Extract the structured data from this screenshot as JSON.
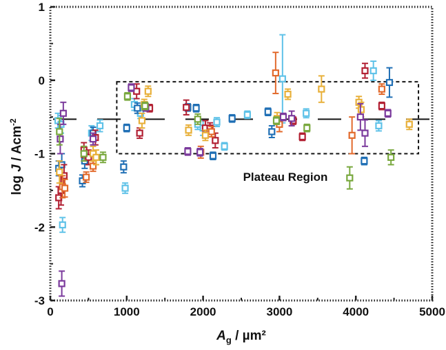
{
  "chart_data": {
    "type": "scatter",
    "title": "",
    "xlabel_main": "A",
    "xlabel_sub": "g",
    "xlabel_rest": " / µm²",
    "ylabel_prefix": "log ",
    "ylabel_italic": "J",
    "ylabel_rest": " / Acm",
    "ylabel_sup": "-2",
    "xlim": [
      0,
      5000
    ],
    "ylim": [
      -3,
      1
    ],
    "x_ticks": [
      0,
      1000,
      2000,
      3000,
      4000,
      5000
    ],
    "x_tick_labels": [
      "0",
      "1000",
      "2000",
      "3000",
      "4000",
      "5000"
    ],
    "y_ticks": [
      -3,
      -2,
      -1,
      0,
      1
    ],
    "y_tick_labels": [
      "-3",
      "-2",
      "-1",
      "0",
      "1"
    ],
    "grid": false,
    "legend": "none",
    "plateau_level": -0.53,
    "plateau_box": {
      "x": [
        870,
        4820
      ],
      "y": [
        -1.0,
        -0.02
      ]
    },
    "annotation": "Plateau Region",
    "colors": {
      "blue": "#1f6fb5",
      "red": "#b22033",
      "orange": "#e26a2c",
      "yellow": "#e8b03a",
      "purple": "#7b3a9c",
      "green": "#79a83e",
      "cyan": "#5fc2e8"
    },
    "series": [
      {
        "color": "cyan",
        "points": [
          [
            100,
            -0.55,
            0.1
          ],
          [
            140,
            -0.6,
            0.12
          ],
          [
            160,
            -1.97,
            0.1
          ],
          [
            540,
            -0.72,
            0.1
          ],
          [
            650,
            -0.62,
            0.08
          ],
          [
            980,
            -1.47,
            0.07
          ],
          [
            1100,
            -0.33,
            0.08
          ],
          [
            1180,
            -0.45,
            0.07
          ],
          [
            1930,
            -0.6,
            0.07
          ],
          [
            2000,
            -0.65,
            0.1
          ],
          [
            2180,
            -0.57,
            0.06
          ],
          [
            2280,
            -0.9,
            0.05
          ],
          [
            2580,
            -0.47,
            0.05
          ],
          [
            3040,
            0.02,
            0.6
          ],
          [
            3350,
            -0.45,
            0.06
          ],
          [
            4230,
            0.13,
            0.13
          ],
          [
            4300,
            -0.62,
            0.07
          ]
        ]
      },
      {
        "color": "blue",
        "points": [
          [
            110,
            -1.2,
            0.1
          ],
          [
            150,
            -1.15,
            0.15
          ],
          [
            420,
            -1.37,
            0.08
          ],
          [
            450,
            -1.1,
            0.1
          ],
          [
            560,
            -0.72,
            0.08
          ],
          [
            960,
            -1.18,
            0.08
          ],
          [
            1000,
            -0.65,
            0.05
          ],
          [
            1140,
            -0.38,
            0.07
          ],
          [
            1800,
            -0.37,
            0.05
          ],
          [
            1910,
            -0.38,
            0.05
          ],
          [
            2130,
            -1.03,
            0.05
          ],
          [
            2380,
            -0.52,
            0.05
          ],
          [
            2850,
            -0.43,
            0.05
          ],
          [
            2900,
            -0.7,
            0.08
          ],
          [
            4110,
            -1.1,
            0.05
          ],
          [
            4440,
            -0.03,
            0.2
          ]
        ]
      },
      {
        "color": "red",
        "points": [
          [
            110,
            -1.6,
            0.15
          ],
          [
            140,
            -1.5,
            0.2
          ],
          [
            180,
            -1.3,
            0.15
          ],
          [
            440,
            -0.95,
            0.1
          ],
          [
            500,
            -1.05,
            0.1
          ],
          [
            590,
            -0.78,
            0.1
          ],
          [
            1130,
            -0.15,
            0.1
          ],
          [
            1170,
            -0.72,
            0.07
          ],
          [
            1300,
            -0.38,
            0.05
          ],
          [
            1780,
            -0.37,
            0.1
          ],
          [
            2030,
            -0.65,
            0.1
          ],
          [
            2090,
            -0.65,
            0.07
          ],
          [
            2160,
            -0.82,
            0.1
          ],
          [
            3180,
            -0.55,
            0.05
          ],
          [
            3300,
            -0.77,
            0.05
          ],
          [
            4120,
            0.13,
            0.1
          ],
          [
            4340,
            -0.35,
            0.05
          ]
        ]
      },
      {
        "color": "orange",
        "points": [
          [
            160,
            -1.45,
            0.15
          ],
          [
            190,
            -1.47,
            0.12
          ],
          [
            470,
            -1.32,
            0.07
          ],
          [
            560,
            -1.17,
            0.07
          ],
          [
            1970,
            -0.98,
            0.08
          ],
          [
            2110,
            -0.7,
            0.07
          ],
          [
            2950,
            0.1,
            0.28
          ],
          [
            3000,
            -0.6,
            0.1
          ],
          [
            3950,
            -0.75,
            0.25
          ],
          [
            4340,
            -0.12,
            0.07
          ]
        ]
      },
      {
        "color": "yellow",
        "points": [
          [
            120,
            -1.25,
            0.15
          ],
          [
            560,
            -1.0,
            0.1
          ],
          [
            600,
            -1.05,
            0.1
          ],
          [
            1200,
            -0.55,
            0.1
          ],
          [
            1280,
            -0.15,
            0.07
          ],
          [
            1230,
            -0.33,
            0.07
          ],
          [
            1810,
            -0.68,
            0.07
          ],
          [
            2030,
            -0.75,
            0.07
          ],
          [
            2970,
            -0.52,
            0.08
          ],
          [
            3110,
            -0.19,
            0.07
          ],
          [
            3550,
            -0.12,
            0.18
          ],
          [
            4040,
            -0.3,
            0.08
          ],
          [
            4070,
            -0.4,
            0.1
          ],
          [
            4700,
            -0.6,
            0.07
          ]
        ]
      },
      {
        "color": "purple",
        "points": [
          [
            130,
            -0.8,
            0.2
          ],
          [
            150,
            -2.77,
            0.17
          ],
          [
            170,
            -0.45,
            0.15
          ],
          [
            560,
            -0.8,
            0.08
          ],
          [
            1060,
            -0.1,
            0.05
          ],
          [
            1250,
            -0.37,
            0.05
          ],
          [
            1800,
            -0.97,
            0.05
          ],
          [
            1960,
            -0.98,
            0.05
          ],
          [
            3050,
            -0.5,
            0.05
          ],
          [
            3160,
            -0.52,
            0.1
          ],
          [
            4060,
            -0.5,
            0.18
          ],
          [
            4120,
            -0.72,
            0.18
          ],
          [
            4420,
            -0.45,
            0.05
          ]
        ]
      },
      {
        "color": "green",
        "points": [
          [
            120,
            -0.7,
            0.18
          ],
          [
            440,
            -1.0,
            0.1
          ],
          [
            690,
            -1.05,
            0.07
          ],
          [
            1010,
            -0.22,
            0.05
          ],
          [
            1240,
            -0.35,
            0.05
          ],
          [
            1930,
            -0.53,
            0.07
          ],
          [
            2960,
            -0.55,
            0.05
          ],
          [
            3360,
            -0.65,
            0.05
          ],
          [
            3920,
            -1.33,
            0.15
          ],
          [
            4460,
            -1.05,
            0.1
          ]
        ]
      }
    ]
  }
}
